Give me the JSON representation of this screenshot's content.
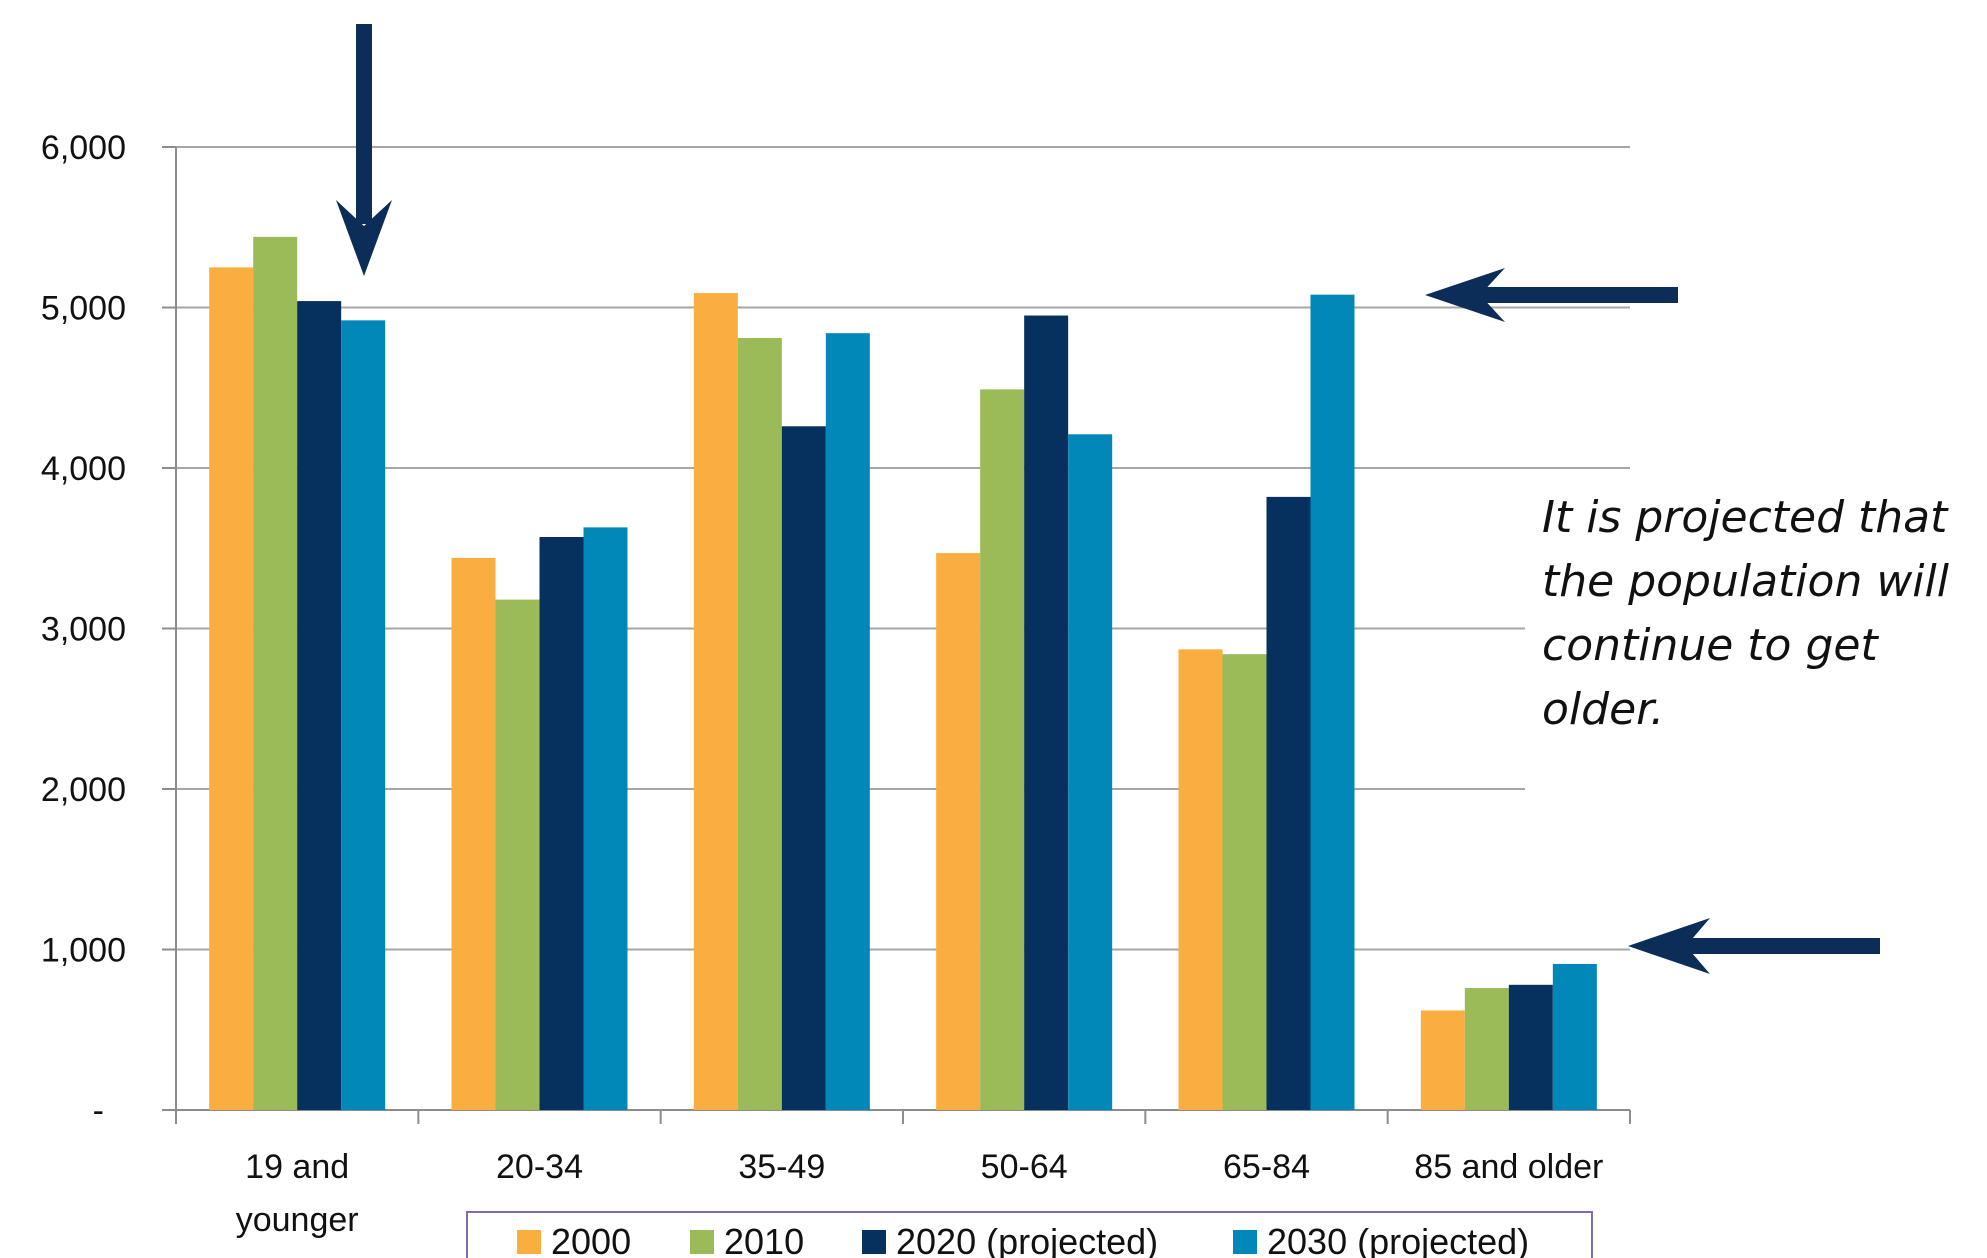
{
  "chart_data": {
    "type": "bar",
    "categories": [
      "19 and younger",
      "20-34",
      "35-49",
      "50-64",
      "65-84",
      "85 and older"
    ],
    "category_lines": [
      [
        "19 and",
        "younger"
      ],
      [
        "20-34"
      ],
      [
        "35-49"
      ],
      [
        "50-64"
      ],
      [
        "65-84"
      ],
      [
        "85 and older"
      ]
    ],
    "series": [
      {
        "name": "2000",
        "color": "#f9ae3f",
        "values": [
          5250,
          3440,
          5090,
          3470,
          2870,
          620
        ]
      },
      {
        "name": "2010",
        "color": "#9bbb59",
        "values": [
          5440,
          3180,
          4810,
          4490,
          2840,
          760
        ]
      },
      {
        "name": "2020 (projected)",
        "color": "#06305e",
        "values": [
          5040,
          3570,
          4260,
          4950,
          3820,
          780
        ]
      },
      {
        "name": "2030 (projected)",
        "color": "#0287b9",
        "values": [
          4920,
          3630,
          4840,
          4210,
          5080,
          910
        ]
      }
    ],
    "ylim": [
      0,
      6000
    ],
    "yticks": [
      0,
      1000,
      2000,
      3000,
      4000,
      5000,
      6000
    ],
    "ytick_labels": [
      "-",
      "1,000",
      "2,000",
      "3,000",
      "4,000",
      "5,000",
      "6,000"
    ],
    "grid": true,
    "legend": "bottom",
    "annotation_lines": [
      "It is projected that",
      "the population will",
      "continue to get",
      "older."
    ],
    "arrow_color": "#0b2d57"
  }
}
